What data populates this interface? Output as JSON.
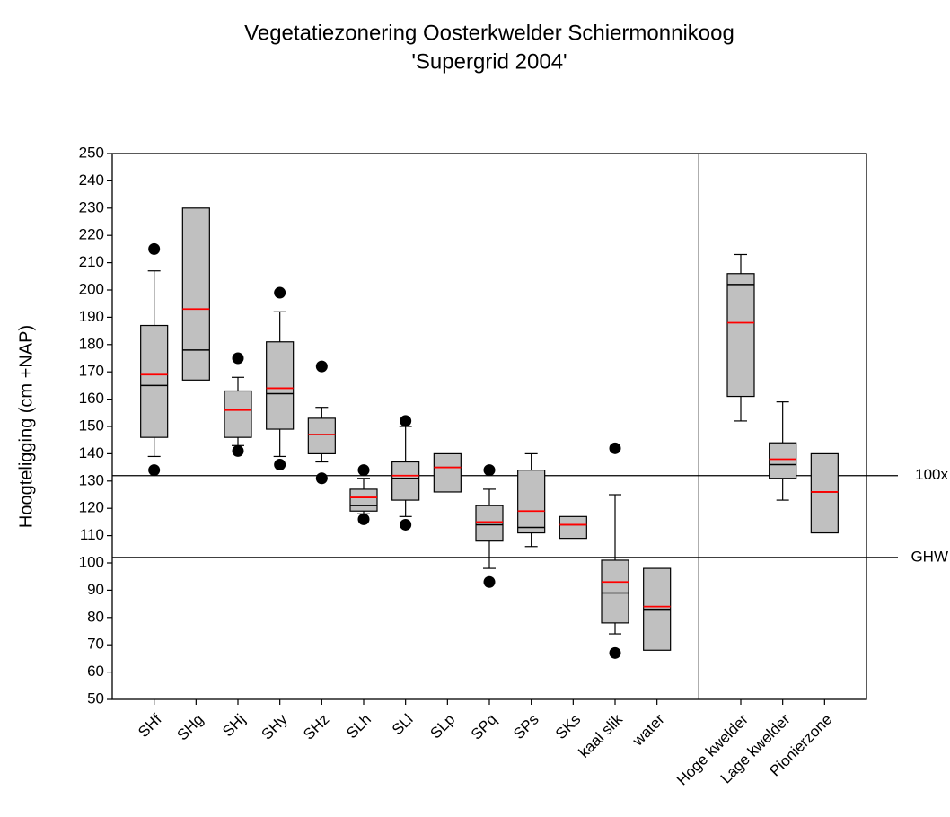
{
  "chart_data": {
    "type": "box",
    "title": "Vegetatiezonering Oosterkwelder Schiermonnikoog",
    "subtitle": "'Supergrid 2004'",
    "y_label": "Hoogteligging (cm +NAP)",
    "ylim": [
      50,
      250
    ],
    "yticks": [
      50,
      60,
      70,
      80,
      90,
      100,
      110,
      120,
      130,
      140,
      150,
      160,
      170,
      180,
      190,
      200,
      210,
      220,
      230,
      240,
      250
    ],
    "categories": [
      "SHf",
      "SHg",
      "SHj",
      "SHy",
      "SHz",
      "SLh",
      "SLl",
      "SLp",
      "SPq",
      "SPs",
      "SKs",
      "kaal slik",
      "water",
      null,
      "Hoge kwelder",
      "Lage kwelder",
      "Pionierzone"
    ],
    "boxes": [
      {
        "whisker_low": 139,
        "q1": 146,
        "median": 165,
        "mean": 169,
        "q3": 187,
        "whisker_high": 207,
        "outliers": [
          215,
          134
        ]
      },
      {
        "whisker_low": null,
        "q1": 167,
        "median": 178,
        "mean": 193,
        "q3": 230,
        "whisker_high": null,
        "outliers": []
      },
      {
        "whisker_low": 143,
        "q1": 146,
        "median": 156,
        "mean": 156,
        "q3": 163,
        "whisker_high": 168,
        "outliers": [
          175,
          141
        ]
      },
      {
        "whisker_low": 139,
        "q1": 149,
        "median": 162,
        "mean": 164,
        "q3": 181,
        "whisker_high": 192,
        "outliers": [
          199,
          136
        ]
      },
      {
        "whisker_low": 137,
        "q1": 140,
        "median": 147,
        "mean": 147,
        "q3": 153,
        "whisker_high": 157,
        "outliers": [
          172,
          131
        ]
      },
      {
        "whisker_low": 118,
        "q1": 119,
        "median": 121,
        "mean": 124,
        "q3": 127,
        "whisker_high": 131,
        "outliers": [
          134,
          116
        ]
      },
      {
        "whisker_low": 117,
        "q1": 123,
        "median": 131,
        "mean": 132,
        "q3": 137,
        "whisker_high": 150,
        "outliers": [
          152,
          114
        ]
      },
      {
        "whisker_low": null,
        "q1": 126,
        "median": 135,
        "mean": 135,
        "q3": 140,
        "whisker_high": null,
        "outliers": []
      },
      {
        "whisker_low": 98,
        "q1": 108,
        "median": 114,
        "mean": 115,
        "q3": 121,
        "whisker_high": 127,
        "outliers": [
          134,
          93
        ]
      },
      {
        "whisker_low": 106,
        "q1": 111,
        "median": 113,
        "mean": 119,
        "q3": 134,
        "whisker_high": 140,
        "outliers": []
      },
      {
        "whisker_low": null,
        "q1": 109,
        "median": 114,
        "mean": 114,
        "q3": 117,
        "whisker_high": null,
        "outliers": []
      },
      {
        "whisker_low": 74,
        "q1": 78,
        "median": 89,
        "mean": 93,
        "q3": 101,
        "whisker_high": 125,
        "outliers": [
          142,
          67
        ]
      },
      {
        "whisker_low": null,
        "q1": 68,
        "median": 83,
        "mean": 84,
        "q3": 98,
        "whisker_high": null,
        "outliers": []
      },
      null,
      {
        "whisker_low": 152,
        "q1": 161,
        "median": 202,
        "mean": 188,
        "q3": 206,
        "whisker_high": 213,
        "outliers": []
      },
      {
        "whisker_low": 123,
        "q1": 131,
        "median": 136,
        "mean": 138,
        "q3": 144,
        "whisker_high": 159,
        "outliers": []
      },
      {
        "whisker_low": null,
        "q1": 111,
        "median": 126,
        "mean": 126,
        "q3": 140,
        "whisker_high": null,
        "outliers": []
      }
    ],
    "reference_lines": [
      {
        "value": 132,
        "label": "100x"
      },
      {
        "value": 102,
        "label": "GHW"
      }
    ],
    "box_color": "#c0c0c0",
    "median_color": "#000000",
    "mean_color": "#ff0000"
  }
}
